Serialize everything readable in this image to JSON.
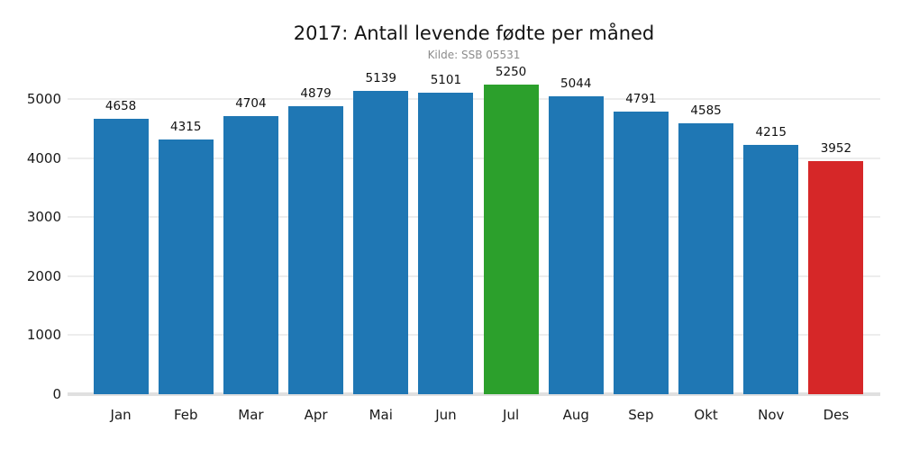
{
  "chart_data": {
    "type": "bar",
    "title": "2017: Antall levende fødte per måned",
    "subtitle": "Kilde: SSB 05531",
    "categories": [
      "Jan",
      "Feb",
      "Mar",
      "Apr",
      "Mai",
      "Jun",
      "Jul",
      "Aug",
      "Sep",
      "Okt",
      "Nov",
      "Des"
    ],
    "values": [
      4658,
      4315,
      4704,
      4879,
      5139,
      5101,
      5250,
      5044,
      4791,
      4585,
      4215,
      3952
    ],
    "bar_colors": [
      "#1f77b4",
      "#1f77b4",
      "#1f77b4",
      "#1f77b4",
      "#1f77b4",
      "#1f77b4",
      "#2ca02c",
      "#1f77b4",
      "#1f77b4",
      "#1f77b4",
      "#1f77b4",
      "#d62728"
    ],
    "value_labels_shown": true,
    "xlabel": "",
    "ylabel": "",
    "yticks": [
      0,
      1000,
      2000,
      3000,
      4000,
      5000
    ],
    "ylim": [
      0,
      5320
    ],
    "grid": true,
    "legend": "none",
    "colors": {
      "bar_default": "#1f77b4",
      "bar_max_highlight": "#2ca02c",
      "bar_min_highlight": "#d62728",
      "gridline": "#ededed",
      "axis_baseline": "#e0e0e0",
      "title_text": "#141414",
      "subtitle_text": "#8c8c8c",
      "background": "#ffffff"
    }
  }
}
